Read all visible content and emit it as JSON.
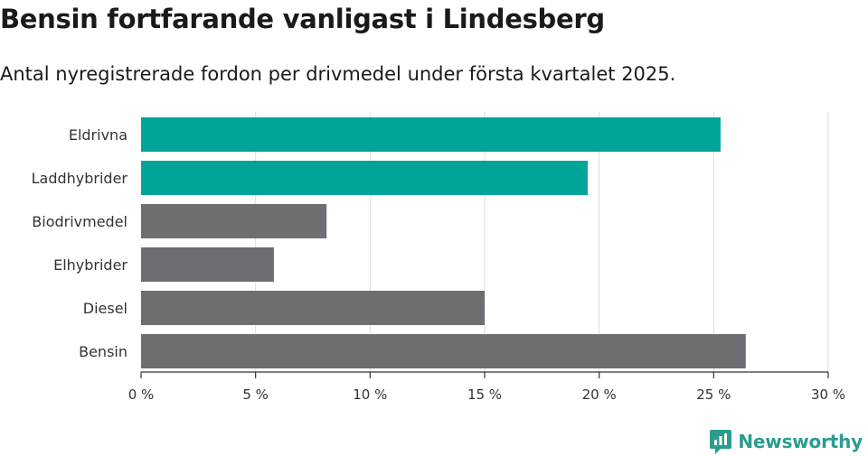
{
  "title": "Bensin fortfarande vanligast i Lindesberg",
  "subtitle": "Antal nyregistrerade fordon per drivmedel under första kvartalet 2025.",
  "brand": {
    "name": "Newsworthy",
    "logo_icon": "newsworthy-logo-icon"
  },
  "colors": {
    "highlight": "#00a499",
    "default": "#6e6d72",
    "grid": "#dddddd",
    "axis": "#333333"
  },
  "chart_data": {
    "type": "bar",
    "orientation": "horizontal",
    "categories": [
      "Eldrivna",
      "Laddhybrider",
      "Biodrivmedel",
      "Elhybrider",
      "Diesel",
      "Bensin"
    ],
    "values": [
      25.3,
      19.5,
      8.1,
      5.8,
      15.0,
      26.4
    ],
    "highlighted": [
      true,
      true,
      false,
      false,
      false,
      false
    ],
    "xlim": [
      0,
      30
    ],
    "xticks": [
      0,
      5,
      10,
      15,
      20,
      25,
      30
    ],
    "xtick_labels": [
      "0 %",
      "5 %",
      "10 %",
      "15 %",
      "20 %",
      "25 %",
      "30 %"
    ],
    "xlabel": "",
    "ylabel": "",
    "grid": true
  }
}
